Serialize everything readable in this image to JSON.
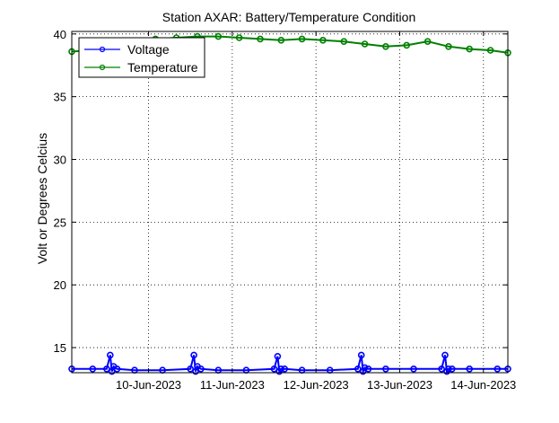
{
  "chart_data": {
    "type": "line",
    "title": "Station AXAR: Battery/Temperature Condition",
    "xlabel": "",
    "ylabel": "Volt or Degrees Celcius",
    "x_type": "date",
    "xlim": [
      "2023-06-09 02:00",
      "2023-06-14 07:00"
    ],
    "ylim": [
      13,
      40.2
    ],
    "x_ticks": [
      "2023-06-10",
      "2023-06-11",
      "2023-06-12",
      "2023-06-13",
      "2023-06-14"
    ],
    "x_tick_labels": [
      "10-Jun-2023",
      "11-Jun-2023",
      "12-Jun-2023",
      "13-Jun-2023",
      "14-Jun-2023"
    ],
    "y_ticks": [
      15,
      20,
      25,
      30,
      35,
      40
    ],
    "y_tick_labels": [
      "15",
      "20",
      "25",
      "30",
      "35",
      "40"
    ],
    "grid": true,
    "legend_position": "top-left",
    "series": [
      {
        "name": "Voltage",
        "color": "#0000ff",
        "x": [
          "2023-06-09 02:00",
          "2023-06-09 08:00",
          "2023-06-09 12:00",
          "2023-06-09 13:00",
          "2023-06-09 13:30",
          "2023-06-09 14:00",
          "2023-06-09 15:00",
          "2023-06-09 20:00",
          "2023-06-10 04:00",
          "2023-06-10 12:00",
          "2023-06-10 13:00",
          "2023-06-10 13:30",
          "2023-06-10 14:00",
          "2023-06-10 15:00",
          "2023-06-10 20:00",
          "2023-06-11 04:00",
          "2023-06-11 12:00",
          "2023-06-11 13:00",
          "2023-06-11 13:30",
          "2023-06-11 14:00",
          "2023-06-11 15:00",
          "2023-06-11 20:00",
          "2023-06-12 04:00",
          "2023-06-12 12:00",
          "2023-06-12 13:00",
          "2023-06-12 13:30",
          "2023-06-12 14:00",
          "2023-06-12 15:00",
          "2023-06-12 20:00",
          "2023-06-13 04:00",
          "2023-06-13 12:00",
          "2023-06-13 13:00",
          "2023-06-13 13:30",
          "2023-06-13 14:00",
          "2023-06-13 15:00",
          "2023-06-13 20:00",
          "2023-06-14 04:00",
          "2023-06-14 07:00"
        ],
        "values": [
          13.3,
          13.3,
          13.3,
          14.4,
          13.1,
          13.5,
          13.3,
          13.2,
          13.2,
          13.3,
          14.4,
          13.1,
          13.5,
          13.3,
          13.2,
          13.2,
          13.3,
          14.3,
          13.1,
          13.3,
          13.3,
          13.2,
          13.2,
          13.3,
          14.4,
          13.1,
          13.4,
          13.3,
          13.3,
          13.3,
          13.3,
          14.4,
          13.1,
          13.3,
          13.3,
          13.3,
          13.3,
          13.3
        ]
      },
      {
        "name": "Temperature",
        "color": "#008000",
        "x": [
          "2023-06-09 02:00",
          "2023-06-09 08:00",
          "2023-06-09 14:00",
          "2023-06-09 20:00",
          "2023-06-10 02:00",
          "2023-06-10 08:00",
          "2023-06-10 14:00",
          "2023-06-10 20:00",
          "2023-06-11 02:00",
          "2023-06-11 08:00",
          "2023-06-11 14:00",
          "2023-06-11 20:00",
          "2023-06-12 02:00",
          "2023-06-12 08:00",
          "2023-06-12 14:00",
          "2023-06-12 20:00",
          "2023-06-13 02:00",
          "2023-06-13 08:00",
          "2023-06-13 14:00",
          "2023-06-13 20:00",
          "2023-06-14 02:00",
          "2023-06-14 07:00"
        ],
        "values": [
          38.6,
          38.7,
          39.1,
          39.4,
          39.6,
          39.7,
          39.8,
          39.8,
          39.7,
          39.6,
          39.5,
          39.6,
          39.5,
          39.4,
          39.2,
          39.0,
          39.1,
          39.4,
          39.0,
          38.8,
          38.7,
          38.5
        ]
      }
    ]
  }
}
